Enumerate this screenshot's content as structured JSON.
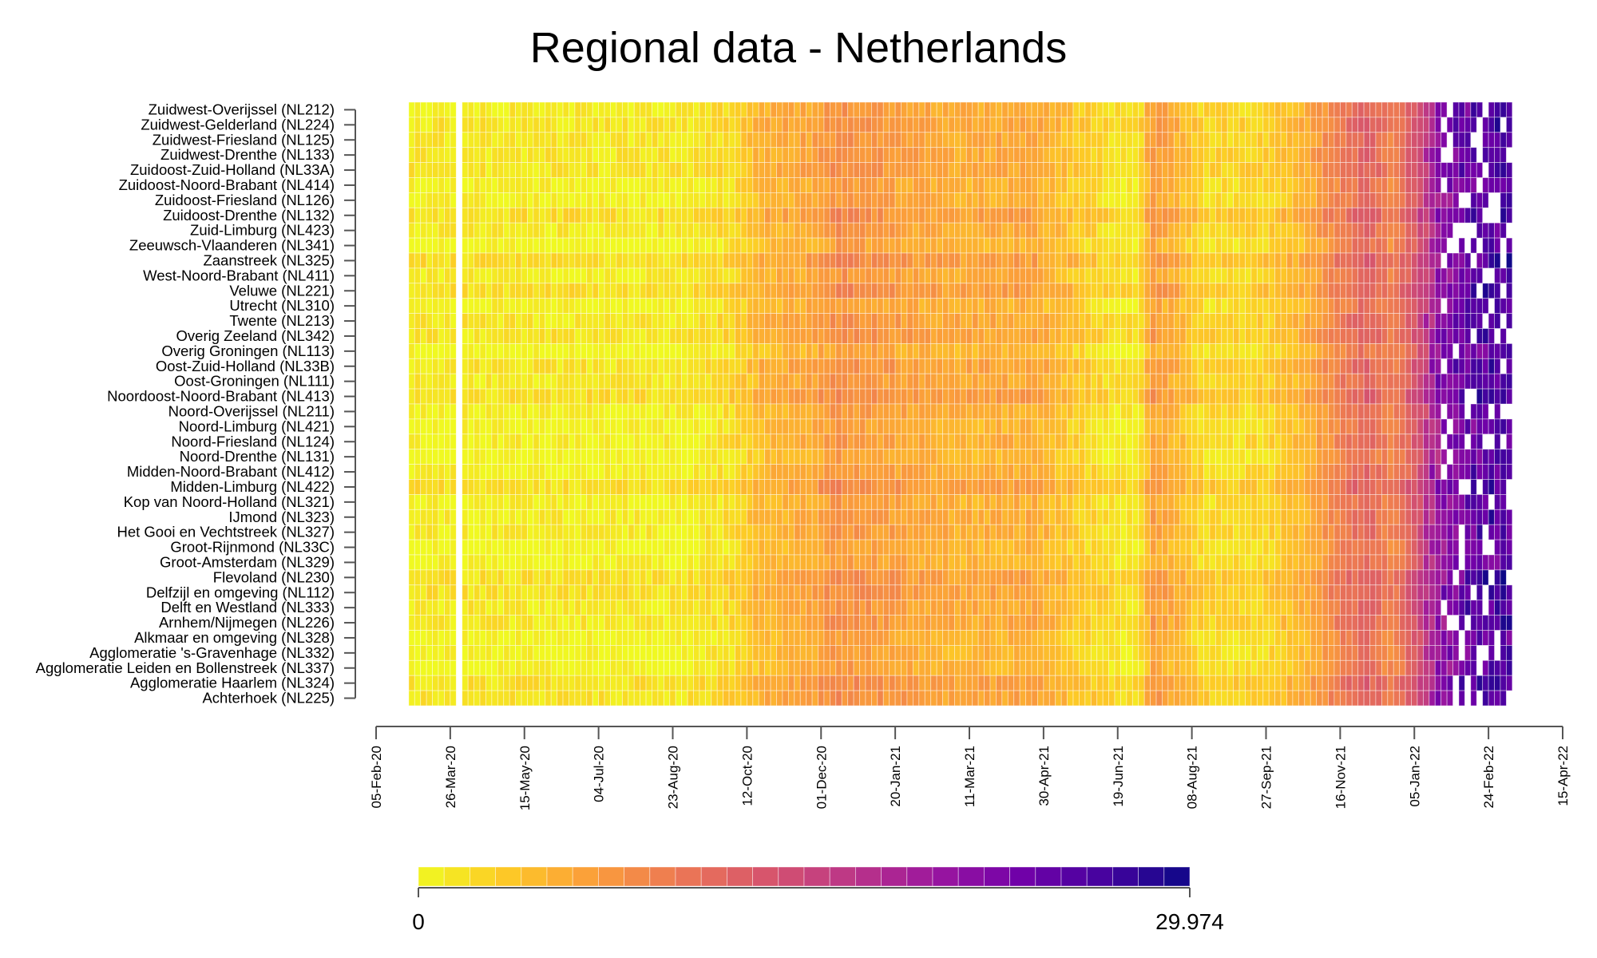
{
  "chart_data": {
    "type": "heatmap",
    "title": "Regional data - Netherlands",
    "regions": [
      "Zuidwest-Overijssel (NL212)",
      "Zuidwest-Gelderland (NL224)",
      "Zuidwest-Friesland (NL125)",
      "Zuidwest-Drenthe (NL133)",
      "Zuidoost-Zuid-Holland (NL33A)",
      "Zuidoost-Noord-Brabant (NL414)",
      "Zuidoost-Friesland (NL126)",
      "Zuidoost-Drenthe (NL132)",
      "Zuid-Limburg (NL423)",
      "Zeeuwsch-Vlaanderen (NL341)",
      "Zaanstreek (NL325)",
      "West-Noord-Brabant (NL411)",
      "Veluwe (NL221)",
      "Utrecht (NL310)",
      "Twente (NL213)",
      "Overig Zeeland (NL342)",
      "Overig Groningen (NL113)",
      "Oost-Zuid-Holland (NL33B)",
      "Oost-Groningen (NL111)",
      "Noordoost-Noord-Brabant (NL413)",
      "Noord-Overijssel (NL211)",
      "Noord-Limburg (NL421)",
      "Noord-Friesland (NL124)",
      "Noord-Drenthe (NL131)",
      "Midden-Noord-Brabant (NL412)",
      "Midden-Limburg (NL422)",
      "Kop van Noord-Holland (NL321)",
      "IJmond (NL323)",
      "Het Gooi en Vechtstreek (NL327)",
      "Groot-Rijnmond (NL33C)",
      "Groot-Amsterdam (NL329)",
      "Flevoland (NL230)",
      "Delfzijl en omgeving (NL112)",
      "Delft en Westland (NL333)",
      "Arnhem/Nijmegen (NL226)",
      "Alkmaar en omgeving (NL328)",
      "Agglomeratie 's-Gravenhage (NL332)",
      "Agglomeratie Leiden en Bollenstreek (NL337)",
      "Agglomeratie Haarlem (NL324)",
      "Achterhoek (NL225)"
    ],
    "x_ticks": [
      "05-Feb-20",
      "26-Mar-20",
      "15-May-20",
      "04-Jul-20",
      "23-Aug-20",
      "12-Oct-20",
      "01-Dec-20",
      "20-Jan-21",
      "11-Mar-21",
      "30-Apr-21",
      "19-Jun-21",
      "08-Aug-21",
      "27-Sep-21",
      "16-Nov-21",
      "05-Jan-22",
      "24-Feb-22",
      "15-Apr-22"
    ],
    "x_range": [
      "05-Feb-20",
      "15-Apr-22"
    ],
    "data_range": [
      "27-Feb-20",
      "10-Mar-22"
    ],
    "cell_interval_days": 4,
    "missing_column_date": "31-Mar-20",
    "color_scale": {
      "min": 0,
      "max": 29.974,
      "min_label": "0",
      "max_label": "29.974",
      "palette": [
        "#f0f921",
        "#fdca26",
        "#fb9f3a",
        "#ed7953",
        "#d8576b",
        "#bd3786",
        "#9c179e",
        "#7201a8",
        "#46039f",
        "#0d0887"
      ]
    },
    "value_profile": {
      "description_keypoints_date": [
        "27-Feb-20",
        "01-Sep-20",
        "01-Oct-20",
        "20-Oct-20",
        "20-Nov-20",
        "10-Dec-20",
        "10-Jan-21",
        "01-Mar-21",
        "20-Apr-21",
        "15-May-21",
        "20-Jun-21",
        "01-Jul-21",
        "10-Jul-21",
        "25-Jul-21",
        "15-Aug-21",
        "20-Sep-21",
        "20-Oct-21",
        "10-Nov-21",
        "01-Dec-21",
        "20-Dec-21",
        "05-Jan-22",
        "20-Jan-22",
        "10-Feb-22",
        "10-Mar-22"
      ],
      "description_keypoints_value": [
        1,
        1,
        2.5,
        5,
        6,
        8,
        7,
        5.5,
        6,
        4,
        1.5,
        1.5,
        7,
        5.5,
        2.5,
        2.5,
        5,
        9,
        12,
        9,
        14,
        21,
        25,
        26
      ]
    },
    "grid": true,
    "legend_position": "bottom"
  }
}
